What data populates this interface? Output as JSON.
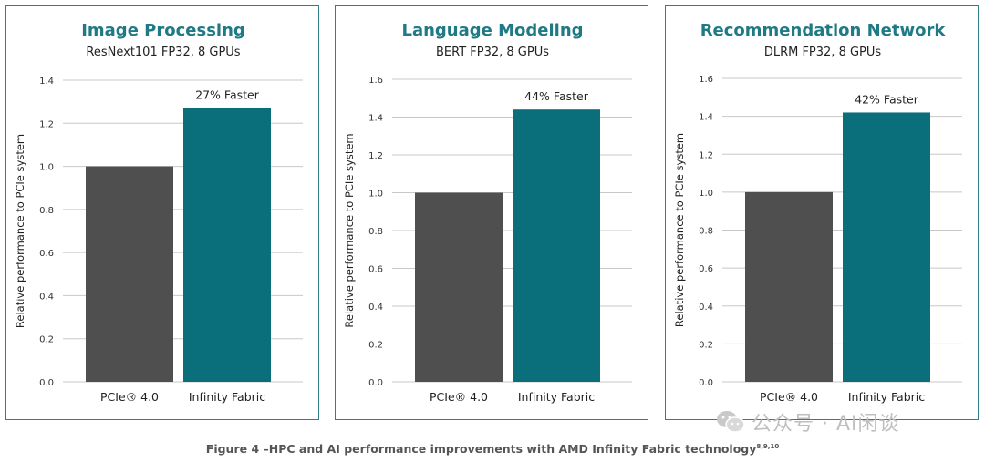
{
  "chart_data": [
    {
      "type": "bar",
      "title": "Image Processing",
      "subtitle": "ResNext101 FP32, 8 GPUs",
      "ylabel": "Relative performance to PCIe system",
      "categories": [
        "PCIe® 4.0",
        "Infinity Fabric"
      ],
      "values": [
        1.0,
        1.27
      ],
      "ylim": [
        0,
        1.4
      ],
      "yticks": [
        "0.0",
        "0.2",
        "0.4",
        "0.6",
        "0.8",
        "1.0",
        "1.2",
        "1.4"
      ],
      "annotation": "27% Faster",
      "grid": true
    },
    {
      "type": "bar",
      "title": "Language Modeling",
      "subtitle": "BERT FP32, 8 GPUs",
      "ylabel": "Relative performance to PCIe system",
      "categories": [
        "PCIe® 4.0",
        "Infinity Fabric"
      ],
      "values": [
        1.0,
        1.44
      ],
      "ylim": [
        0,
        1.6
      ],
      "yticks": [
        "0.0",
        "0.2",
        "0.4",
        "0.6",
        "0.8",
        "1.0",
        "1.2",
        "1.4",
        "1.6"
      ],
      "annotation": "44% Faster",
      "grid": true
    },
    {
      "type": "bar",
      "title": "Recommendation Network",
      "subtitle": "DLRM FP32, 8 GPUs",
      "ylabel": "Relative performance to PCIe system",
      "categories": [
        "PCIe® 4.0",
        "Infinity Fabric"
      ],
      "values": [
        1.0,
        1.42
      ],
      "ylim": [
        0,
        1.6
      ],
      "yticks": [
        "0.0",
        "0.2",
        "0.4",
        "0.6",
        "0.8",
        "1.0",
        "1.2",
        "1.4",
        "1.6"
      ],
      "annotation": "42% Faster",
      "grid": true
    }
  ],
  "colors": {
    "title": "#1f7a85",
    "bar_pcie": "#4f4f4f",
    "bar_infinity": "#0b6e7b",
    "grid": "#c8c8c8",
    "border": "#2f7f8a"
  },
  "caption": {
    "text": "Figure 4 –HPC and AI performance improvements with AMD Infinity Fabric technology",
    "sup": "8,9,10"
  },
  "watermark": {
    "icon": "wechat-icon",
    "text": "公众号 · AI闲谈"
  }
}
